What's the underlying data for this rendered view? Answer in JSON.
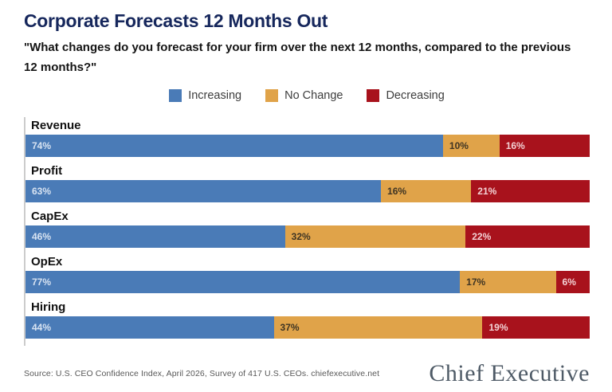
{
  "header": {
    "title": "Corporate Forecasts 12 Months Out",
    "subtitle": "\"What changes do you forecast for your firm over the next 12 months, compared to the previous 12 months?\""
  },
  "legend": [
    {
      "label": "Increasing",
      "color": "#4a7bb7"
    },
    {
      "label": "No Change",
      "color": "#e0a349"
    },
    {
      "label": "Decreasing",
      "color": "#a8121c"
    }
  ],
  "chart_data": {
    "type": "bar",
    "variant": "horizontal-100pct-stacked",
    "title": "Corporate Forecasts 12 Months Out",
    "categories": [
      "Revenue",
      "Profit",
      "CapEx",
      "OpEx",
      "Hiring"
    ],
    "series": [
      {
        "name": "Increasing",
        "color": "#4a7bb7",
        "label_color": "#d9e4f2",
        "values": [
          74,
          63,
          46,
          77,
          44
        ]
      },
      {
        "name": "No Change",
        "color": "#e0a349",
        "label_color": "#3e3423",
        "values": [
          10,
          16,
          32,
          17,
          37
        ]
      },
      {
        "name": "Decreasing",
        "color": "#a8121c",
        "label_color": "#f3d2d5",
        "values": [
          16,
          21,
          22,
          6,
          19
        ]
      }
    ],
    "value_suffix": "%",
    "xlim": [
      0,
      100
    ],
    "grid": false,
    "legend_position": "top-center",
    "axis_line": "left"
  },
  "footer": {
    "source": "Source: U.S. CEO Confidence Index, April 2026, Survey of 417 U.S. CEOs. chiefexecutive.net",
    "brand": "Chief Executive"
  }
}
